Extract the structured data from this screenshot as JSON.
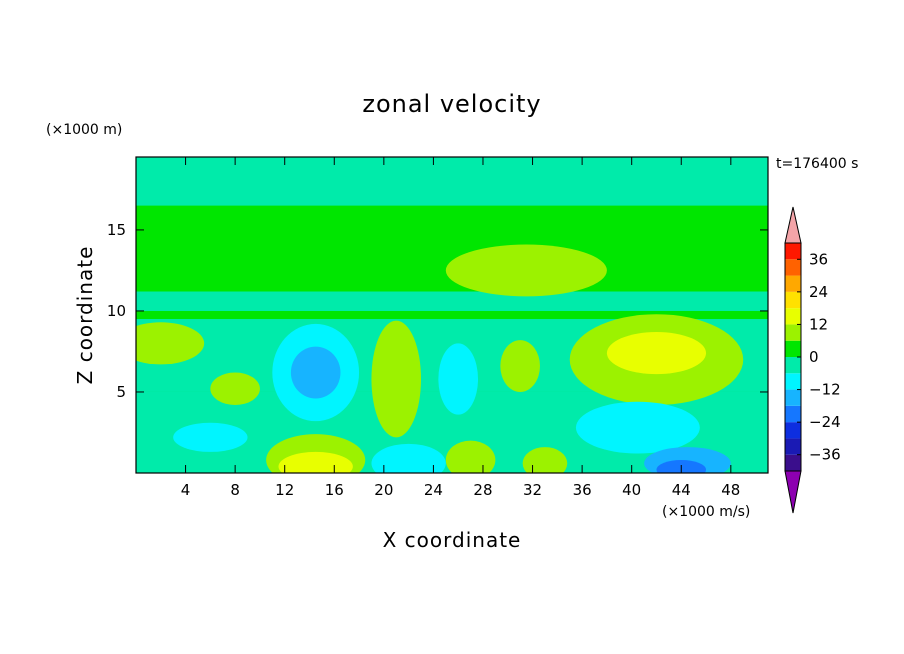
{
  "chart_data": {
    "type": "heatmap",
    "title": "zonal velocity",
    "xlabel": "X coordinate",
    "ylabel": "Z coordinate",
    "y_unit_label": "(×1000 m)",
    "colorbar_unit_label": "(×1000 m/s)",
    "time_label": "t=176400 s",
    "xlim": [
      0,
      51
    ],
    "ylim": [
      0,
      19.5
    ],
    "x_ticks": [
      4,
      8,
      12,
      16,
      20,
      24,
      28,
      32,
      36,
      40,
      44,
      48
    ],
    "y_ticks": [
      5,
      10,
      15
    ],
    "colorbar": {
      "levels": [
        -42,
        -36,
        -30,
        -24,
        -18,
        -12,
        -6,
        0,
        6,
        12,
        18,
        24,
        30,
        36,
        42
      ],
      "tick_values": [
        36,
        24,
        12,
        0,
        -12,
        -24,
        -36
      ],
      "tick_labels": [
        "36",
        "24",
        "12",
        "0",
        "−12",
        "−24",
        "−36"
      ],
      "colors": [
        "#3a0e8c",
        "#1a1ab4",
        "#0d2ee0",
        "#1577ff",
        "#17b4ff",
        "#00f5ff",
        "#00ebaa",
        "#00e600",
        "#9cf200",
        "#e8ff00",
        "#ffe100",
        "#ffa800",
        "#ff6200",
        "#ff1800"
      ],
      "under_color": "#8c00b0",
      "over_color": "#f4a4a8",
      "extend": "both"
    },
    "background_value": 3,
    "field_features": [
      {
        "shape": "band",
        "zmin": 15.5,
        "zmax": 16.5,
        "value": 3
      },
      {
        "shape": "band",
        "zmin": 16.5,
        "zmax": 19.5,
        "value": -3
      },
      {
        "shape": "band",
        "zmin": 10.0,
        "zmax": 11.2,
        "value": -3
      },
      {
        "shape": "band",
        "zmin": 5.0,
        "zmax": 9.5,
        "value": -3
      },
      {
        "shape": "band",
        "zmin": 0.0,
        "zmax": 5.0,
        "value": -3
      },
      {
        "shape": "blob",
        "cx": 2,
        "cz": 8.0,
        "rx": 3.5,
        "rz": 1.3,
        "value": 9
      },
      {
        "shape": "blob",
        "cx": 8,
        "cz": 5.2,
        "rx": 2.0,
        "rz": 1.0,
        "value": 9
      },
      {
        "shape": "blob",
        "cx": 14.5,
        "cz": 6.2,
        "rx": 3.5,
        "rz": 3.0,
        "value": -9
      },
      {
        "shape": "blob",
        "cx": 14.5,
        "cz": 6.2,
        "rx": 2.0,
        "rz": 1.6,
        "value": -15
      },
      {
        "shape": "blob",
        "cx": 21.0,
        "cz": 5.8,
        "rx": 2.0,
        "rz": 3.6,
        "value": 9
      },
      {
        "shape": "blob",
        "cx": 26.0,
        "cz": 5.8,
        "rx": 1.6,
        "rz": 2.2,
        "value": -9
      },
      {
        "shape": "blob",
        "cx": 31.0,
        "cz": 6.6,
        "rx": 1.6,
        "rz": 1.6,
        "value": 9
      },
      {
        "shape": "blob",
        "cx": 42.0,
        "cz": 7.0,
        "rx": 7.0,
        "rz": 2.8,
        "value": 9
      },
      {
        "shape": "blob",
        "cx": 42.0,
        "cz": 7.4,
        "rx": 4.0,
        "rz": 1.3,
        "value": 14
      },
      {
        "shape": "blob",
        "cx": 31.5,
        "cz": 12.5,
        "rx": 6.5,
        "rz": 1.6,
        "value": 9
      },
      {
        "shape": "blob",
        "cx": 14.5,
        "cz": 0.8,
        "rx": 4.0,
        "rz": 1.6,
        "value": 9
      },
      {
        "shape": "blob",
        "cx": 14.5,
        "cz": 0.4,
        "rx": 3.0,
        "rz": 0.9,
        "value": 14
      },
      {
        "shape": "blob",
        "cx": 40.5,
        "cz": 2.8,
        "rx": 5.0,
        "rz": 1.6,
        "value": -9
      },
      {
        "shape": "blob",
        "cx": 44.5,
        "cz": 0.6,
        "rx": 3.5,
        "rz": 1.0,
        "value": -15
      },
      {
        "shape": "blob",
        "cx": 44.0,
        "cz": 0.2,
        "rx": 2.0,
        "rz": 0.6,
        "value": -21
      },
      {
        "shape": "blob",
        "cx": 22.0,
        "cz": 0.6,
        "rx": 3.0,
        "rz": 1.2,
        "value": -9
      },
      {
        "shape": "blob",
        "cx": 27.0,
        "cz": 0.8,
        "rx": 2.0,
        "rz": 1.2,
        "value": 9
      },
      {
        "shape": "blob",
        "cx": 33.0,
        "cz": 0.6,
        "rx": 1.8,
        "rz": 1.0,
        "value": 9
      },
      {
        "shape": "blob",
        "cx": 6.0,
        "cz": 2.2,
        "rx": 3.0,
        "rz": 0.9,
        "value": -9
      }
    ]
  }
}
